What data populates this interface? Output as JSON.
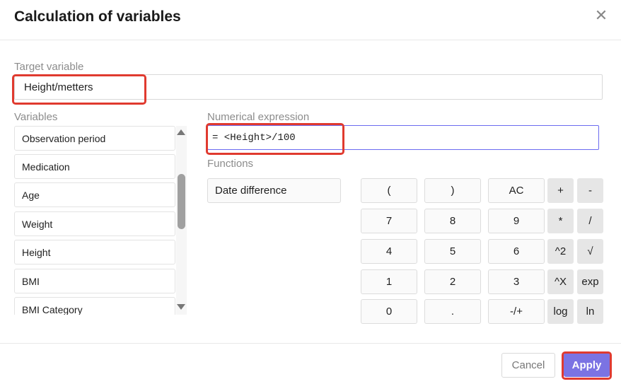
{
  "dialog": {
    "title": "Calculation of variables",
    "close_icon": "close-icon"
  },
  "target": {
    "label": "Target variable",
    "value": "Height/metters"
  },
  "variables": {
    "label": "Variables",
    "items": [
      "Observation period",
      "Medication",
      "Age",
      "Weight",
      "Height",
      "BMI",
      "BMI Category"
    ]
  },
  "expression": {
    "label": "Numerical expression",
    "value": "= <Height>/100"
  },
  "functions": {
    "label": "Functions",
    "items": [
      "Date difference"
    ]
  },
  "keypad": {
    "rows": [
      [
        "(",
        ")",
        "AC",
        "+",
        "-"
      ],
      [
        "7",
        "8",
        "9",
        "*",
        "/"
      ],
      [
        "4",
        "5",
        "6",
        "^2",
        "√"
      ],
      [
        "1",
        "2",
        "3",
        "^X",
        "exp"
      ],
      [
        "0",
        ".",
        "-/+",
        "log",
        "ln"
      ]
    ]
  },
  "footer": {
    "cancel": "Cancel",
    "apply": "Apply"
  },
  "colors": {
    "accent": "#7b73e3",
    "highlight": "#e03a2f",
    "focus_border": "#6b6bf0"
  }
}
